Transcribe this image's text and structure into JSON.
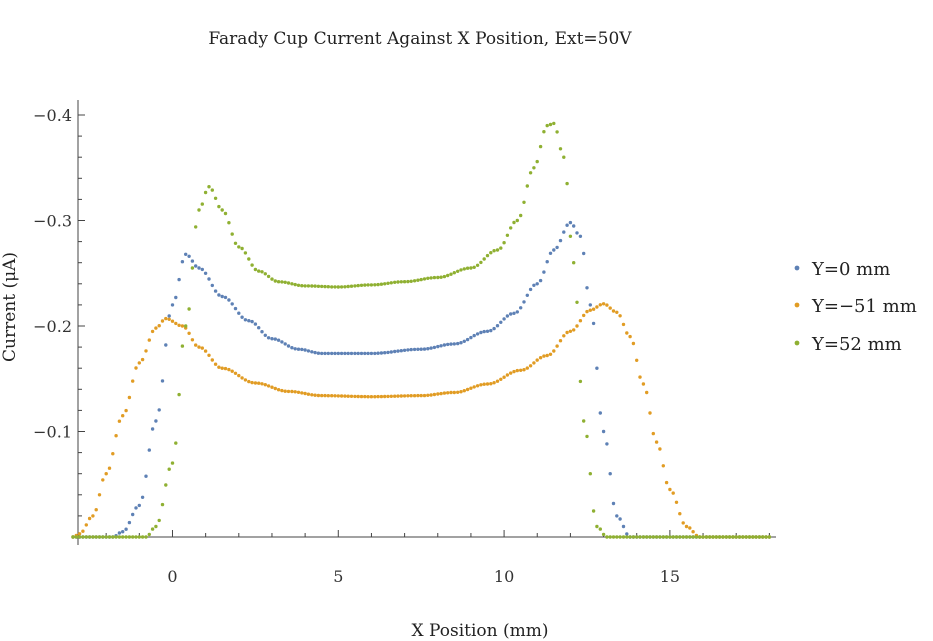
{
  "chart_data": {
    "type": "scatter",
    "title": "Farady Cup Current Against  X Position, Ext=50V",
    "xlabel": "X Position (mm)",
    "ylabel": "Current (μA)",
    "xlim": [
      -3,
      18.2
    ],
    "ylim": [
      0,
      -0.4
    ],
    "x_ticks": [
      0,
      5,
      10,
      15
    ],
    "x_tick_labels": [
      "0",
      "5",
      "10",
      "15"
    ],
    "y_ticks": [
      -0.1,
      -0.2,
      -0.3,
      -0.4
    ],
    "y_tick_labels": [
      "−0.1",
      "−0.2",
      "−0.3",
      "−0.4"
    ],
    "legend_position": "right",
    "grid": false,
    "series": [
      {
        "name": "Y=0 mm",
        "color": "#5e81b5",
        "x_start": -3,
        "x_end": 18,
        "x_step": 0.1,
        "profile": [
          [
            -3,
            0
          ],
          [
            -1.8,
            0
          ],
          [
            -1.5,
            -0.005
          ],
          [
            -1.0,
            -0.03
          ],
          [
            -0.5,
            -0.11
          ],
          [
            0,
            -0.22
          ],
          [
            0.4,
            -0.268
          ],
          [
            0.8,
            -0.255
          ],
          [
            1.5,
            -0.228
          ],
          [
            2.3,
            -0.205
          ],
          [
            3.0,
            -0.188
          ],
          [
            3.8,
            -0.178
          ],
          [
            4.5,
            -0.174
          ],
          [
            6.0,
            -0.174
          ],
          [
            7.5,
            -0.178
          ],
          [
            8.5,
            -0.183
          ],
          [
            9.5,
            -0.195
          ],
          [
            10.3,
            -0.212
          ],
          [
            11.0,
            -0.24
          ],
          [
            11.5,
            -0.272
          ],
          [
            12.0,
            -0.298
          ],
          [
            12.3,
            -0.285
          ],
          [
            12.6,
            -0.22
          ],
          [
            13.0,
            -0.1
          ],
          [
            13.4,
            -0.02
          ],
          [
            13.8,
            0
          ],
          [
            18,
            0
          ]
        ]
      },
      {
        "name": "Y=−51 mm",
        "color": "#e19c24",
        "x_start": -3,
        "x_end": 18,
        "x_step": 0.1,
        "profile": [
          [
            -3,
            0
          ],
          [
            -2.8,
            -0.003
          ],
          [
            -2.4,
            -0.02
          ],
          [
            -2.0,
            -0.06
          ],
          [
            -1.5,
            -0.115
          ],
          [
            -1.0,
            -0.165
          ],
          [
            -0.5,
            -0.198
          ],
          [
            -0.2,
            -0.207
          ],
          [
            0.3,
            -0.2
          ],
          [
            0.8,
            -0.18
          ],
          [
            1.5,
            -0.16
          ],
          [
            2.5,
            -0.146
          ],
          [
            3.5,
            -0.138
          ],
          [
            4.5,
            -0.134
          ],
          [
            6.0,
            -0.133
          ],
          [
            7.5,
            -0.134
          ],
          [
            8.5,
            -0.137
          ],
          [
            9.5,
            -0.145
          ],
          [
            10.5,
            -0.158
          ],
          [
            11.3,
            -0.172
          ],
          [
            12.0,
            -0.195
          ],
          [
            12.6,
            -0.215
          ],
          [
            13.0,
            -0.221
          ],
          [
            13.4,
            -0.213
          ],
          [
            13.8,
            -0.19
          ],
          [
            14.2,
            -0.145
          ],
          [
            14.6,
            -0.09
          ],
          [
            15.0,
            -0.045
          ],
          [
            15.5,
            -0.01
          ],
          [
            15.9,
            0
          ],
          [
            18,
            0
          ]
        ]
      },
      {
        "name": "Y=52 mm",
        "color": "#8fb032",
        "x_start": -3,
        "x_end": 18,
        "x_step": 0.1,
        "profile": [
          [
            -3,
            0
          ],
          [
            -0.8,
            0
          ],
          [
            -0.5,
            -0.01
          ],
          [
            0,
            -0.07
          ],
          [
            0.4,
            -0.2
          ],
          [
            0.8,
            -0.31
          ],
          [
            1.1,
            -0.332
          ],
          [
            1.5,
            -0.31
          ],
          [
            2.0,
            -0.275
          ],
          [
            2.6,
            -0.252
          ],
          [
            3.2,
            -0.242
          ],
          [
            4.0,
            -0.238
          ],
          [
            5.0,
            -0.237
          ],
          [
            6.0,
            -0.239
          ],
          [
            7.0,
            -0.242
          ],
          [
            8.0,
            -0.246
          ],
          [
            9.0,
            -0.255
          ],
          [
            9.8,
            -0.272
          ],
          [
            10.4,
            -0.3
          ],
          [
            10.9,
            -0.35
          ],
          [
            11.3,
            -0.39
          ],
          [
            11.5,
            -0.392
          ],
          [
            11.8,
            -0.36
          ],
          [
            12.1,
            -0.26
          ],
          [
            12.4,
            -0.11
          ],
          [
            12.8,
            -0.01
          ],
          [
            13.1,
            0
          ],
          [
            18,
            0
          ]
        ]
      }
    ]
  }
}
